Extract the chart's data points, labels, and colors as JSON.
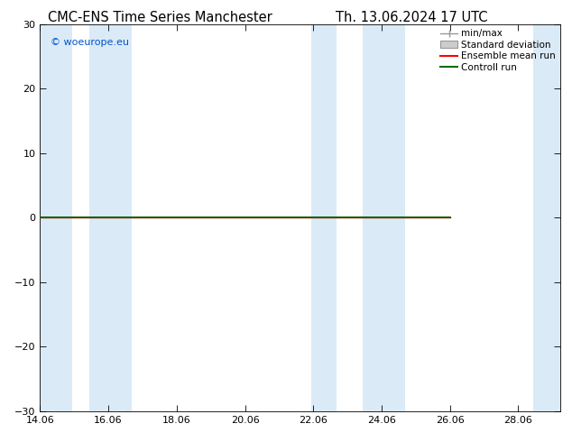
{
  "title_left": "CMC-ENS Time Series Manchester",
  "title_right": "Th. 13.06.2024 17 UTC",
  "title_fontsize": 10.5,
  "watermark": "© woeurope.eu",
  "watermark_color": "#0055cc",
  "ylim": [
    -30,
    30
  ],
  "yticks": [
    -30,
    -20,
    -10,
    0,
    10,
    20,
    30
  ],
  "xlim_start": 14.06,
  "xlim_end": 29.3,
  "xticks": [
    14.06,
    16.06,
    18.06,
    20.06,
    22.06,
    24.06,
    26.06,
    28.06
  ],
  "xtick_labels": [
    "14.06",
    "16.06",
    "18.06",
    "20.06",
    "22.06",
    "24.06",
    "26.06",
    "28.06"
  ],
  "background_color": "#ffffff",
  "plot_bg_color": "#ffffff",
  "shading_color": "#daeaf7",
  "shading_bands": [
    [
      14.06,
      15.0
    ],
    [
      15.5,
      16.75
    ],
    [
      22.0,
      22.75
    ],
    [
      23.5,
      24.75
    ],
    [
      28.5,
      29.3
    ]
  ],
  "zero_line_color": "#000000",
  "control_run_color": "#007000",
  "ensemble_mean_color": "#ff0000",
  "line_end_x": 26.06,
  "legend_items": [
    {
      "label": "min/max",
      "color": "#aaaaaa",
      "type": "errorbar"
    },
    {
      "label": "Standard deviation",
      "color": "#cccccc",
      "type": "box"
    },
    {
      "label": "Ensemble mean run",
      "color": "#ff0000",
      "type": "line"
    },
    {
      "label": "Controll run",
      "color": "#007000",
      "type": "line"
    }
  ],
  "font_family": "DejaVu Sans",
  "tick_fontsize": 8,
  "legend_fontsize": 7.5
}
